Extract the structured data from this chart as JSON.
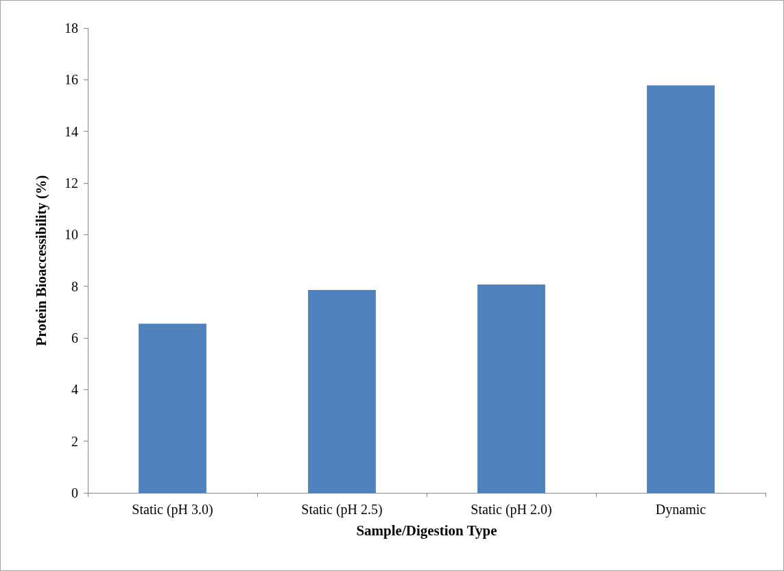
{
  "chart_data": {
    "type": "bar",
    "xlabel": "Sample/Digestion Type",
    "ylabel": "Protein Bioaccessibility (%)",
    "categories": [
      "Static (pH 3.0)",
      "Static (pH 2.5)",
      "Static (pH 2.0)",
      "Dynamic"
    ],
    "values": [
      6.55,
      7.86,
      8.07,
      15.78
    ],
    "color": "#4f81bd",
    "ylim": [
      0,
      18
    ],
    "yticks": [
      0,
      2,
      4,
      6,
      8,
      10,
      12,
      14,
      16,
      18
    ],
    "grid": false
  }
}
